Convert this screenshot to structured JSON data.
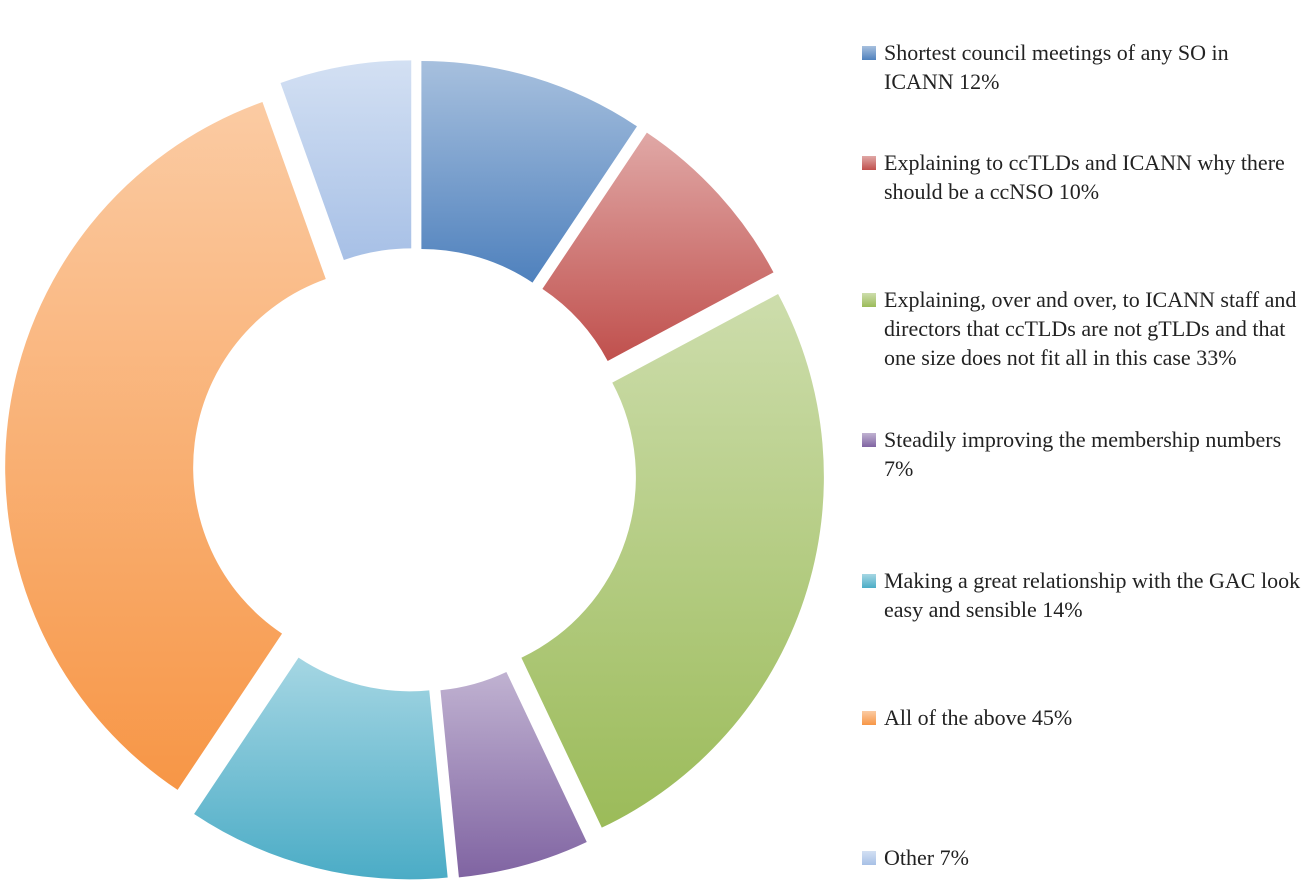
{
  "chart_data": {
    "type": "donut",
    "categories": [
      "Shortest council meetings of any SO in ICANN",
      "Explaining to ccTLDs and ICANN why there should be a ccNSO",
      "Explaining, over and over, to ICANN staff and directors that ccTLDs are not gTLDs and that one size does not fit all in this case",
      "Steadily improving the membership numbers",
      "Making a great relationship with the GAC look easy and sensible",
      "All of the above",
      "Other"
    ],
    "values": [
      12,
      10,
      33,
      7,
      14,
      45,
      7
    ],
    "value_labels": [
      "12%",
      "10%",
      "33%",
      "7%",
      "14%",
      "45%",
      "7%"
    ],
    "colors": [
      "#4f81bd",
      "#c0504d",
      "#9bbb59",
      "#8064a2",
      "#4bacc6",
      "#f79646",
      "#a7c0e6"
    ],
    "legend": "right"
  }
}
